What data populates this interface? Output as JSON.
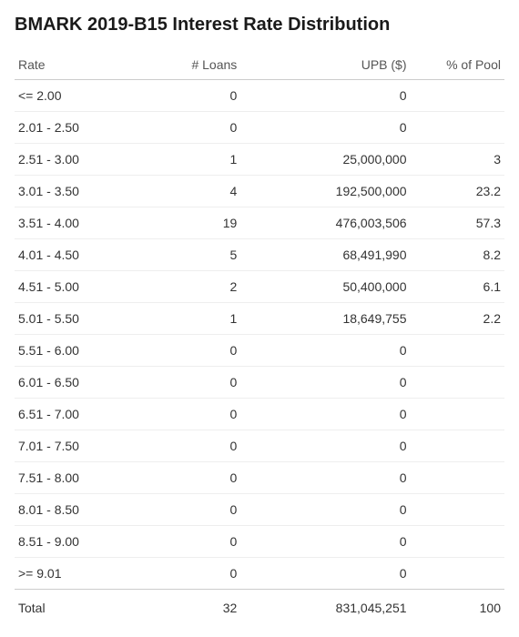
{
  "title": "BMARK 2019-B15 Interest Rate Distribution",
  "columns": {
    "rate": "Rate",
    "loans": "# Loans",
    "upb": "UPB ($)",
    "pct": "% of Pool"
  },
  "rows": [
    {
      "rate": "<= 2.00",
      "loans": "0",
      "upb": "0",
      "pct": ""
    },
    {
      "rate": "2.01 - 2.50",
      "loans": "0",
      "upb": "0",
      "pct": ""
    },
    {
      "rate": "2.51 - 3.00",
      "loans": "1",
      "upb": "25,000,000",
      "pct": "3"
    },
    {
      "rate": "3.01 - 3.50",
      "loans": "4",
      "upb": "192,500,000",
      "pct": "23.2"
    },
    {
      "rate": "3.51 - 4.00",
      "loans": "19",
      "upb": "476,003,506",
      "pct": "57.3"
    },
    {
      "rate": "4.01 - 4.50",
      "loans": "5",
      "upb": "68,491,990",
      "pct": "8.2"
    },
    {
      "rate": "4.51 - 5.00",
      "loans": "2",
      "upb": "50,400,000",
      "pct": "6.1"
    },
    {
      "rate": "5.01 - 5.50",
      "loans": "1",
      "upb": "18,649,755",
      "pct": "2.2"
    },
    {
      "rate": "5.51 - 6.00",
      "loans": "0",
      "upb": "0",
      "pct": ""
    },
    {
      "rate": "6.01 - 6.50",
      "loans": "0",
      "upb": "0",
      "pct": ""
    },
    {
      "rate": "6.51 - 7.00",
      "loans": "0",
      "upb": "0",
      "pct": ""
    },
    {
      "rate": "7.01 - 7.50",
      "loans": "0",
      "upb": "0",
      "pct": ""
    },
    {
      "rate": "7.51 - 8.00",
      "loans": "0",
      "upb": "0",
      "pct": ""
    },
    {
      "rate": "8.01 - 8.50",
      "loans": "0",
      "upb": "0",
      "pct": ""
    },
    {
      "rate": "8.51 - 9.00",
      "loans": "0",
      "upb": "0",
      "pct": ""
    },
    {
      "rate": ">= 9.01",
      "loans": "0",
      "upb": "0",
      "pct": ""
    }
  ],
  "total": {
    "label": "Total",
    "loans": "32",
    "upb": "831,045,251",
    "pct": "100"
  }
}
